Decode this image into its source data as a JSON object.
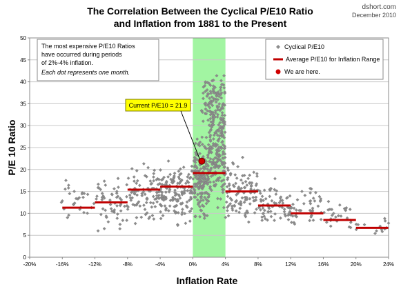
{
  "chart_data": {
    "type": "scatter",
    "title_lines": [
      "The Correlation Between the Cyclical P/E10 Ratio",
      "and Inflation from 1881 to the Present"
    ],
    "source": "dshort.com",
    "date": "December 2010",
    "xlabel": "Inflation Rate",
    "ylabel": "P/E 10 Ratio",
    "xlim": [
      -20,
      24
    ],
    "ylim": [
      0,
      50
    ],
    "x_ticks": [
      -20,
      -16,
      -12,
      -8,
      -4,
      0,
      4,
      8,
      12,
      16,
      20,
      24
    ],
    "x_tick_labels": [
      "-20%",
      "-16%",
      "-12%",
      "-8%",
      "-4%",
      "0%",
      "4%",
      "8%",
      "12%",
      "16%",
      "20%",
      "24%"
    ],
    "y_ticks": [
      0,
      5,
      10,
      15,
      20,
      25,
      30,
      35,
      40,
      45,
      50
    ],
    "grid": "horizontal",
    "highlight_band": {
      "x": [
        0,
        4
      ],
      "color": "#98f498"
    },
    "legend": {
      "placement": "top-right",
      "items": [
        {
          "label": "Cyclical P/E10",
          "marker": "diamond",
          "color": "#8c8c8c"
        },
        {
          "label": "Average P/E10 for Inflation Range",
          "marker": "line",
          "color": "#c00000"
        },
        {
          "label": "We are here.",
          "marker": "circle",
          "color": "#d00000"
        }
      ]
    },
    "annotation_box": {
      "lines": [
        "The most expensive P/E10 Ratios",
        "have occurred during periods",
        "of 2%-4% inflation."
      ],
      "note": "Each dot represents one month."
    },
    "callout": {
      "label": "Current P/E10 = 21.9",
      "color": "#ffff00"
    },
    "current_point": {
      "x": 1.1,
      "y": 21.9
    },
    "averages": [
      {
        "x_range": [
          -16,
          -12
        ],
        "y": 11.3
      },
      {
        "x_range": [
          -12,
          -8
        ],
        "y": 12.5
      },
      {
        "x_range": [
          -8,
          -4
        ],
        "y": 15.4
      },
      {
        "x_range": [
          -4,
          0
        ],
        "y": 16.1
      },
      {
        "x_range": [
          0,
          4
        ],
        "y": 19.2
      },
      {
        "x_range": [
          4,
          8
        ],
        "y": 15.0
      },
      {
        "x_range": [
          8,
          12
        ],
        "y": 11.8
      },
      {
        "x_range": [
          12,
          16
        ],
        "y": 10.0
      },
      {
        "x_range": [
          16,
          20
        ],
        "y": 8.5
      },
      {
        "x_range": [
          20,
          24
        ],
        "y": 6.7
      }
    ],
    "point_clusters": [
      {
        "x": [
          -16.5,
          -12
        ],
        "y": [
          5,
          20
        ],
        "n": 28
      },
      {
        "x": [
          -12,
          -8
        ],
        "y": [
          4,
          20
        ],
        "n": 55
      },
      {
        "x": [
          -8,
          -4
        ],
        "y": [
          6,
          23
        ],
        "n": 90
      },
      {
        "x": [
          -4,
          0
        ],
        "y": [
          6,
          24
        ],
        "n": 150
      },
      {
        "x": [
          0,
          2
        ],
        "y": [
          6,
          30
        ],
        "n": 170
      },
      {
        "x": [
          2,
          4
        ],
        "y": [
          6,
          44
        ],
        "n": 220
      },
      {
        "x": [
          1,
          4
        ],
        "y": [
          28,
          44
        ],
        "n": 70
      },
      {
        "x": [
          4,
          8
        ],
        "y": [
          5,
          24
        ],
        "n": 110
      },
      {
        "x": [
          8,
          12
        ],
        "y": [
          5,
          19
        ],
        "n": 70
      },
      {
        "x": [
          12,
          16
        ],
        "y": [
          6,
          17
        ],
        "n": 45
      },
      {
        "x": [
          16,
          20
        ],
        "y": [
          5,
          14
        ],
        "n": 30
      },
      {
        "x": [
          20,
          24
        ],
        "y": [
          4,
          10
        ],
        "n": 14
      }
    ]
  }
}
